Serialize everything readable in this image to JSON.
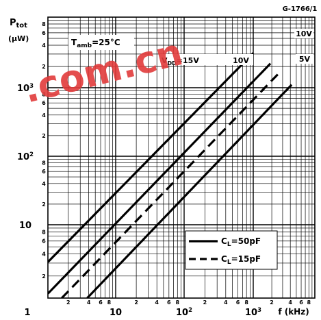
{
  "chart_data": {
    "type": "line",
    "figure_id": "G-1766/1",
    "ylabel_main": "P",
    "ylabel_sub": "tot",
    "ylabel_unit": "(μW)",
    "xlabel": "f  (kHz)",
    "condition_main": "T",
    "condition_sub": "amb",
    "condition_rest": "=25°C",
    "x_scale": "log",
    "y_scale": "log",
    "xlim": [
      1,
      10000
    ],
    "ylim": [
      1,
      10000
    ],
    "grid": true,
    "x_decade_labels": [
      "1",
      "10",
      "10²",
      "10³",
      "f  (kHz)"
    ],
    "y_decade_labels": [
      "10",
      "10²",
      "10³"
    ],
    "minor_tick_labels": [
      "2",
      "4",
      "6",
      "8"
    ],
    "curve_labels": [
      "V",
      "DD",
      "=15V",
      "10V",
      "10V",
      "5V"
    ],
    "legend": [
      {
        "name_main": "C",
        "name_sub": "L",
        "name_rest": "=50pF",
        "style": "solid"
      },
      {
        "name_main": "C",
        "name_sub": "L",
        "name_rest": "=15pF",
        "style": "dashed"
      }
    ],
    "legend_position": "lower-right",
    "series": [
      {
        "vdd": "15V",
        "cl": "50pF",
        "style": "solid",
        "x": [
          1,
          1000
        ],
        "y": [
          3.1,
          3100
        ]
      },
      {
        "vdd": "10V",
        "cl": "50pF",
        "style": "solid",
        "x": [
          1,
          1900
        ],
        "y": [
          1.15,
          2200
        ]
      },
      {
        "vdd": "10V",
        "cl": "15pF",
        "style": "dashed",
        "x": [
          1.6,
          2600
        ],
        "y": [
          1,
          1600
        ]
      },
      {
        "vdd": "5V",
        "cl": "50pF",
        "style": "solid",
        "x": [
          3.8,
          4200
        ],
        "y": [
          1,
          1100
        ]
      }
    ],
    "watermark": ".com.cn"
  }
}
